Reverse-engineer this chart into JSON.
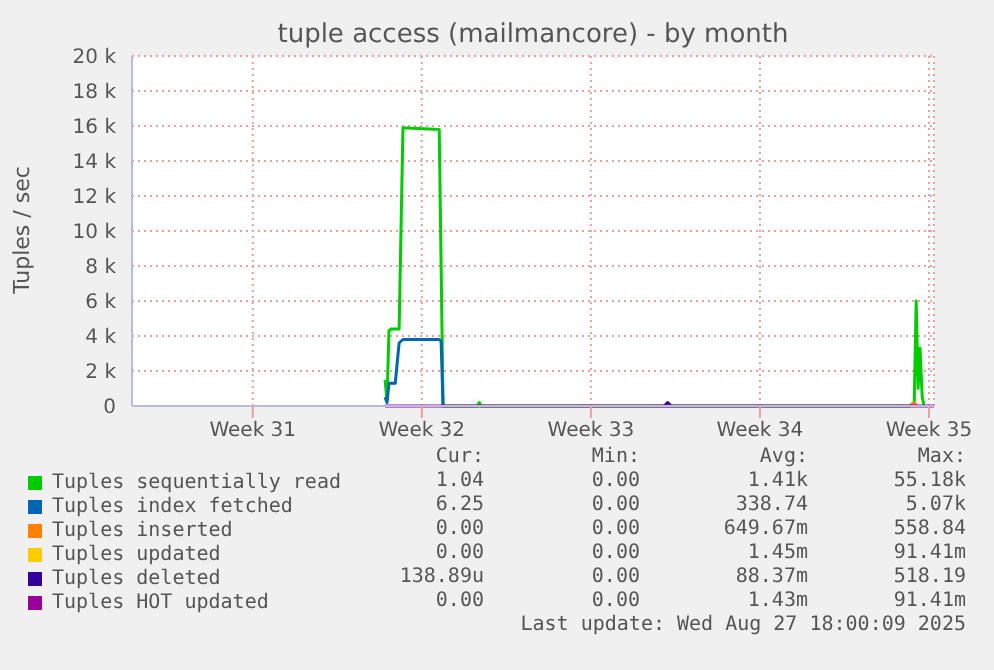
{
  "chart_data": {
    "type": "line",
    "title": "tuple access (mailmancore) - by month",
    "ylabel": "Tuples / sec",
    "xlim": [
      "2025-07-25T13:00",
      "2025-08-27T18:00"
    ],
    "xticks": [
      {
        "value": "2025-07-30T13:00",
        "label": "Week 31"
      },
      {
        "value": "2025-08-06T13:00",
        "label": "Week 32"
      },
      {
        "value": "2025-08-13T13:00",
        "label": "Week 33"
      },
      {
        "value": "2025-08-20T13:00",
        "label": "Week 34"
      },
      {
        "value": "2025-08-27T13:00",
        "label": "Week 35"
      }
    ],
    "ylim": [
      0,
      20000
    ],
    "yticks": [
      {
        "value": 0,
        "label": "0"
      },
      {
        "value": 2000,
        "label": "2 k"
      },
      {
        "value": 4000,
        "label": "4 k"
      },
      {
        "value": 6000,
        "label": "6 k"
      },
      {
        "value": 8000,
        "label": "8 k"
      },
      {
        "value": 10000,
        "label": "10 k"
      },
      {
        "value": 12000,
        "label": "12 k"
      },
      {
        "value": 14000,
        "label": "14 k"
      },
      {
        "value": 16000,
        "label": "16 k"
      },
      {
        "value": 18000,
        "label": "18 k"
      },
      {
        "value": 20000,
        "label": "20 k"
      }
    ],
    "grid": true,
    "legend": "bottom",
    "marker": "none",
    "line_style": "solid",
    "series": [
      {
        "name": "Tuples sequentially read",
        "color": "#00cc00",
        "x": [
          "2025-08-05T00:30",
          "2025-08-05T02:26",
          "2025-08-05T04:22",
          "2025-08-05T06:31",
          "2025-08-05T14:26",
          "2025-08-05T18:17",
          "2025-08-07T06:17",
          "2025-08-07T08:12",
          "2025-08-07T10:07",
          "2025-08-08T20:12",
          "2025-08-08T22:07",
          "2025-08-09T00:02",
          "2025-08-26T17:48",
          "2025-08-26T22:22",
          "2025-08-27T00:17",
          "2025-08-27T02:12",
          "2025-08-27T04:07",
          "2025-08-27T06:17",
          "2025-08-27T08:12"
        ],
        "values": [
          1500,
          300,
          4300,
          4400,
          4400,
          15900,
          15800,
          8000,
          0,
          0,
          200,
          0,
          0,
          200,
          6000,
          1000,
          3300,
          500,
          0
        ]
      },
      {
        "name": "Tuples index fetched",
        "color": "#0066b3",
        "x": [
          "2025-08-05T00:30",
          "2025-08-05T02:26",
          "2025-08-05T04:22",
          "2025-08-05T10:36",
          "2025-08-05T14:26",
          "2025-08-05T18:17",
          "2025-08-07T06:17",
          "2025-08-07T08:12",
          "2025-08-07T10:07"
        ],
        "values": [
          500,
          200,
          1300,
          1300,
          3600,
          3800,
          3800,
          3700,
          0
        ]
      },
      {
        "name": "Tuples inserted",
        "color": "#ff8000",
        "x": [
          "2025-08-26T19:00",
          "2025-08-26T22:22",
          "2025-08-27T01:00"
        ],
        "values": [
          0,
          200,
          0
        ]
      },
      {
        "name": "Tuples updated",
        "color": "#ffcc00"
      },
      {
        "name": "Tuples deleted",
        "color": "#330099",
        "x": [
          "2025-08-16T14:00",
          "2025-08-16T17:18",
          "2025-08-16T20:30"
        ],
        "values": [
          0,
          200,
          0
        ]
      },
      {
        "name": "Tuples HOT updated",
        "color": "#990099",
        "x": [
          "2025-08-05T00:30",
          "2025-08-27T18:00"
        ],
        "values": [
          0,
          0
        ]
      }
    ],
    "annotations": [
      "Cur:",
      "Min:",
      "Avg:",
      "Max:",
      "1.04",
      "0.00",
      "1.41k",
      "55.18k",
      "6.25",
      "0.00",
      "338.74",
      "5.07k",
      "0.00",
      "0.00",
      "649.67m",
      "558.84",
      "0.00",
      "0.00",
      "1.45m",
      "91.41m",
      "138.89u",
      "0.00",
      "88.37m",
      "518.19",
      "0.00",
      "0.00",
      "1.43m",
      "91.41m",
      "Last update: Wed Aug 27 18:00:09 2025"
    ]
  }
}
